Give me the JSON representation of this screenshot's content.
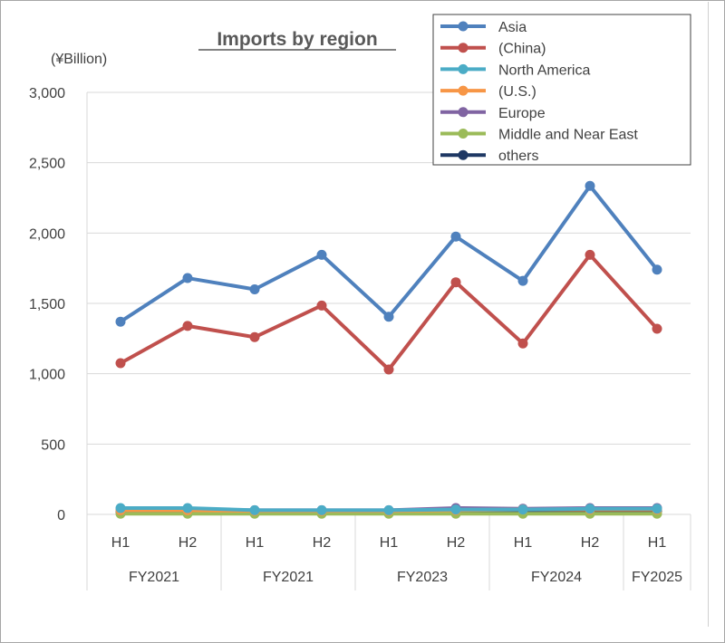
{
  "chart_data": {
    "type": "line",
    "title": "Imports by region",
    "unit_label": "(¥Billion)",
    "categories": [
      "H1",
      "H2",
      "H1",
      "H2",
      "H1",
      "H2",
      "H1",
      "H2",
      "H1"
    ],
    "groups": [
      {
        "label": "FY2021",
        "span": 2
      },
      {
        "label": "FY2021",
        "span": 2
      },
      {
        "label": "FY2023",
        "span": 2
      },
      {
        "label": "FY2024",
        "span": 2
      },
      {
        "label": "FY2025",
        "span": 1
      }
    ],
    "ylim": [
      0,
      3000
    ],
    "yticks": [
      0,
      500,
      1000,
      1500,
      2000,
      2500,
      3000
    ],
    "ytick_labels": [
      "0",
      "500",
      "1,000",
      "1,500",
      "2,000",
      "2,500",
      "3,000"
    ],
    "grid": true,
    "legend_position": "top-right",
    "series": [
      {
        "name": "Asia",
        "color": "#4f81bd",
        "values": [
          1370,
          1680,
          1600,
          1845,
          1405,
          1975,
          1660,
          2335,
          1740
        ]
      },
      {
        "name": "(China)",
        "color": "#c0504d",
        "values": [
          1075,
          1340,
          1260,
          1485,
          1030,
          1650,
          1215,
          1845,
          1320
        ]
      },
      {
        "name": "North America",
        "color": "#4bacc6",
        "values": [
          45,
          45,
          30,
          30,
          30,
          35,
          35,
          40,
          40
        ]
      },
      {
        "name": "(U.S.)",
        "color": "#f79646",
        "values": [
          30,
          30,
          25,
          25,
          25,
          30,
          35,
          35,
          35
        ]
      },
      {
        "name": "Europe",
        "color": "#8064a2",
        "values": [
          30,
          35,
          30,
          30,
          30,
          45,
          40,
          45,
          45
        ]
      },
      {
        "name": "Middle and Near East",
        "color": "#9bbb59",
        "values": [
          5,
          5,
          5,
          5,
          5,
          5,
          5,
          5,
          5
        ]
      },
      {
        "name": "others",
        "color": "#1f3864",
        "values": [
          20,
          20,
          25,
          25,
          25,
          25,
          25,
          25,
          25
        ]
      }
    ]
  }
}
